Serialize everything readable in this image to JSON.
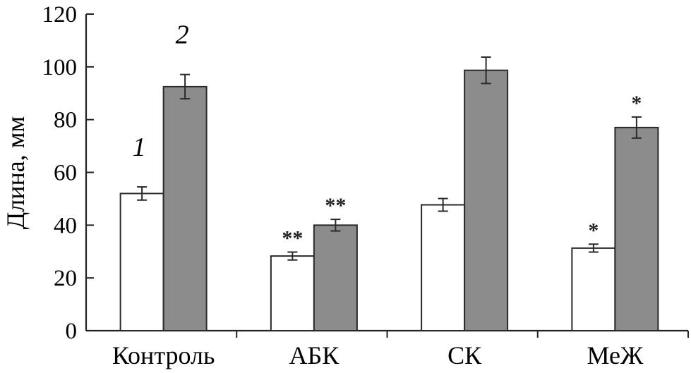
{
  "chart_data": {
    "type": "bar",
    "ylabel": "Длина, мм",
    "xlabel": "",
    "ylim": [
      0,
      120
    ],
    "yticks": [
      0,
      20,
      40,
      60,
      80,
      100,
      120
    ],
    "grid": false,
    "categories": [
      "Контроль",
      "АБК",
      "СК",
      "МеЖ"
    ],
    "series": [
      {
        "name": "1",
        "color": "#ffffff",
        "values": [
          52,
          28.3,
          47.7,
          31.3
        ],
        "errors": [
          2.5,
          1.5,
          2.4,
          1.5
        ],
        "annotations": [
          "",
          "**",
          "",
          "*"
        ]
      },
      {
        "name": "2",
        "color": "#8c8c8c",
        "values": [
          92.5,
          40,
          98.7,
          77
        ],
        "errors": [
          4.6,
          2.2,
          5,
          4
        ],
        "annotations": [
          "",
          "**",
          "",
          "*"
        ]
      }
    ]
  }
}
